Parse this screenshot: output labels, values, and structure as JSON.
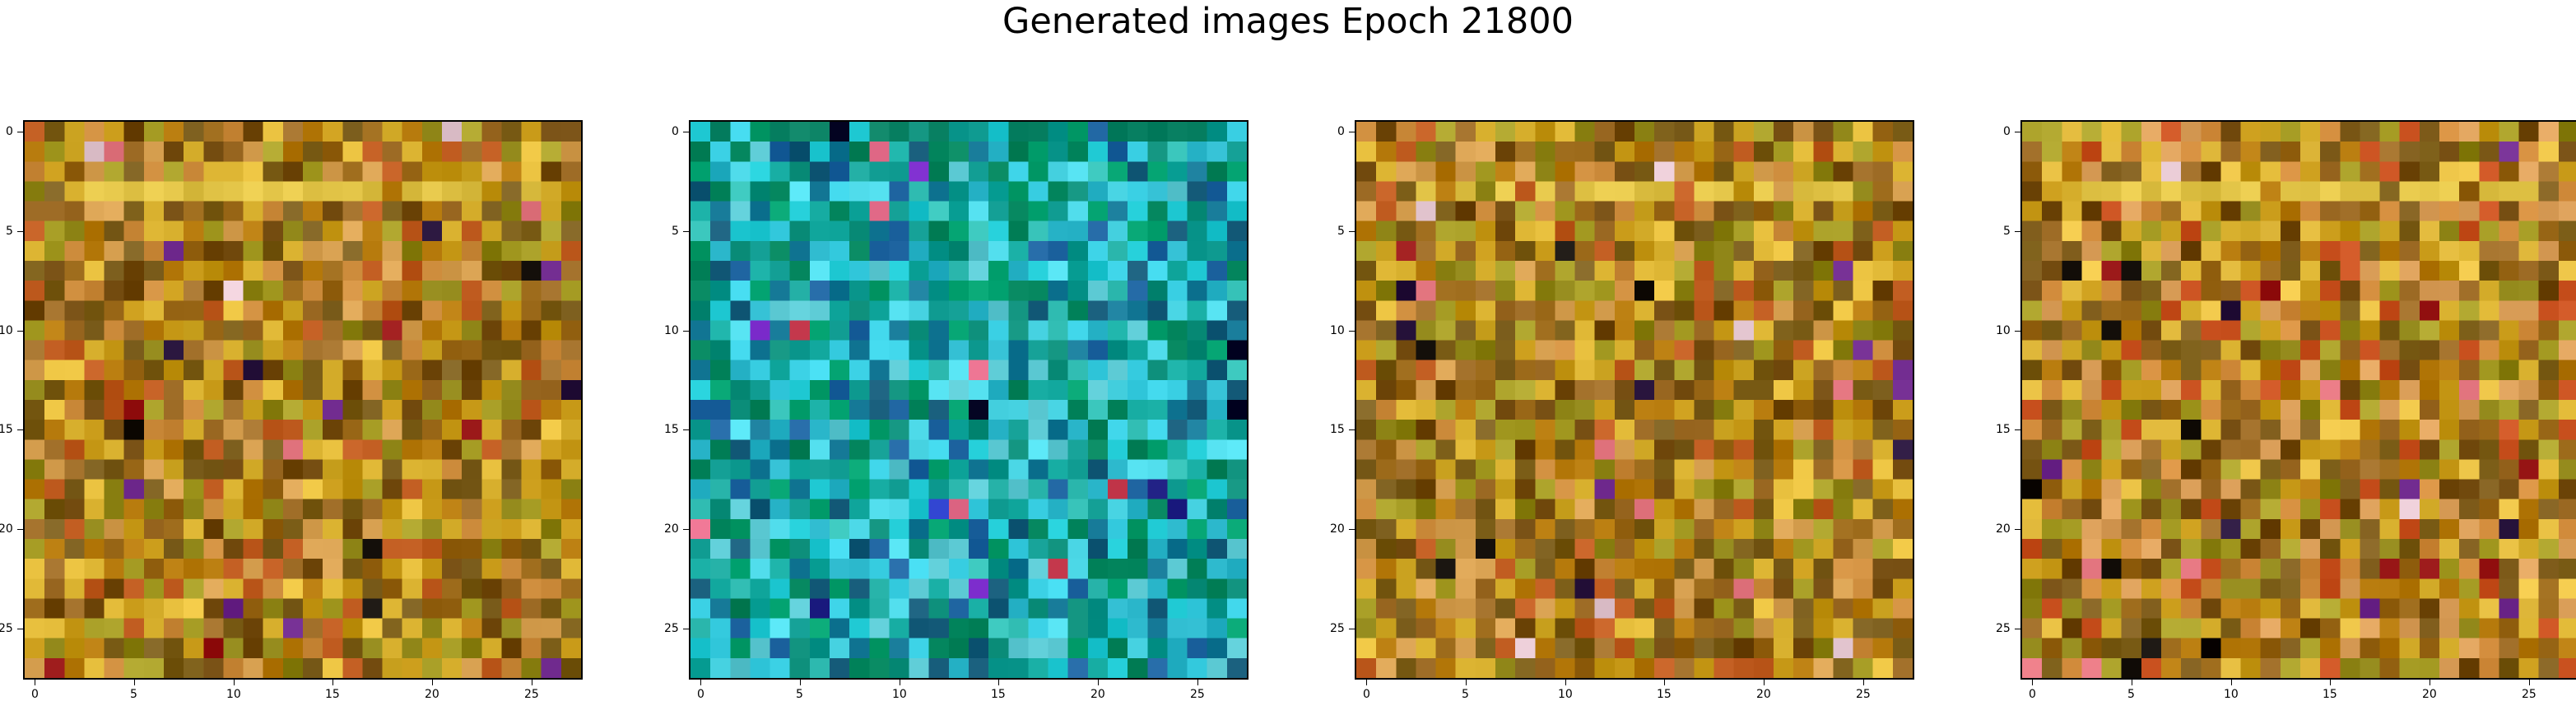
{
  "figure": {
    "title": "Generated images Epoch 21800"
  },
  "panels": [
    {
      "name": "generated-image-1",
      "palette": "warm"
    },
    {
      "name": "generated-image-2",
      "palette": "cool"
    },
    {
      "name": "generated-image-3",
      "palette": "warm"
    },
    {
      "name": "generated-image-4",
      "palette": "warm-vivid"
    }
  ],
  "axes": {
    "x_ticks": [
      "0",
      "5",
      "10",
      "15",
      "20",
      "25"
    ],
    "y_ticks": [
      "0",
      "5",
      "10",
      "15",
      "20",
      "25"
    ],
    "grid_size": 28
  }
}
